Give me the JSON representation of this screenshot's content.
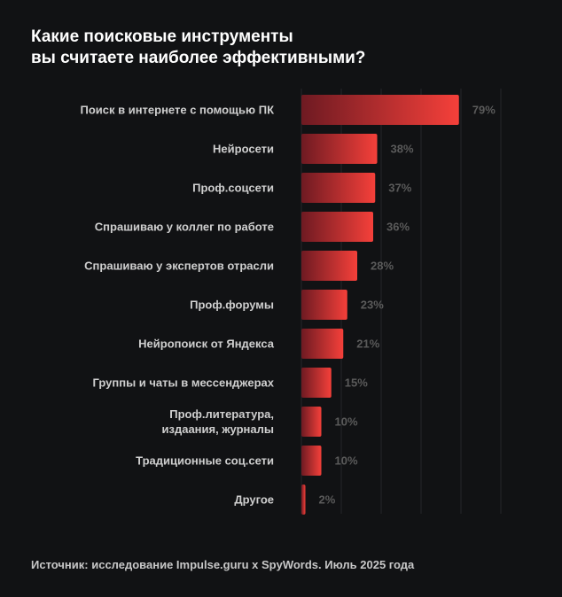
{
  "title_lines": [
    "Какие поисковые инструменты",
    "вы считаете наиболее эффективными?"
  ],
  "source": "Источник: исследование Impulse.guru x SpyWords. Июль 2025 года",
  "colors": {
    "background": "#111214",
    "bar_start": "#6e1a22",
    "bar_end": "#f5403a",
    "label": "#cfcfcf",
    "value": "#5a5a5a",
    "grid": "#25272a"
  },
  "chart_data": {
    "type": "bar",
    "orientation": "horizontal",
    "title": "Какие поисковые инструменты вы считаете наиболее эффективными?",
    "categories": [
      [
        "Поиск в интернете с помощью ПК"
      ],
      [
        "Нейросети"
      ],
      [
        "Проф.соцсети"
      ],
      [
        "Спрашиваю у коллег по работе"
      ],
      [
        "Спрашиваю у экспертов отрасли"
      ],
      [
        "Проф.форумы"
      ],
      [
        "Нейропоиск от Яндекса"
      ],
      [
        "Группы и чаты в мессенджерах"
      ],
      [
        "Проф.литература,",
        "издаания, журналы"
      ],
      [
        "Традиционные соц.сети"
      ],
      [
        "Другое"
      ]
    ],
    "values": [
      79,
      38,
      37,
      36,
      28,
      23,
      21,
      15,
      10,
      10,
      2
    ],
    "value_labels": [
      "79%",
      "38%",
      "37%",
      "36%",
      "28%",
      "23%",
      "21%",
      "15%",
      "10%",
      "10%",
      "2%"
    ],
    "xlim": [
      0,
      100
    ],
    "grid_step": 20,
    "grid": true,
    "legend": "none"
  }
}
